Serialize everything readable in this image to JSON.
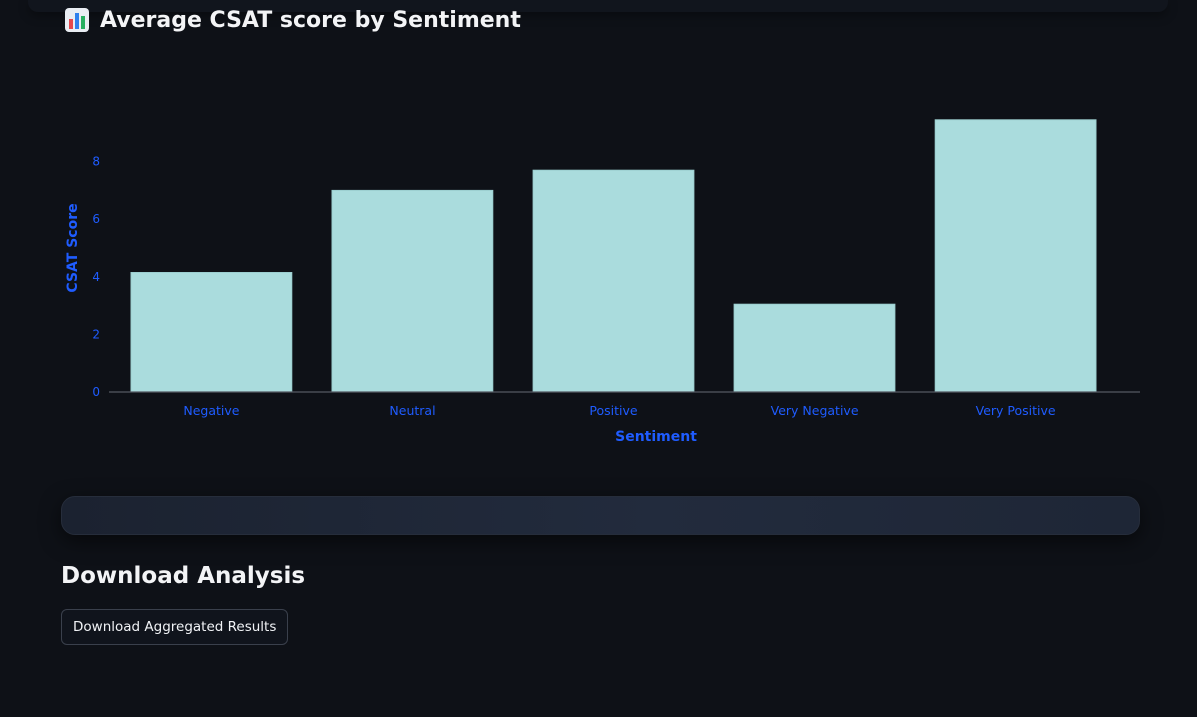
{
  "page": {
    "title": "Average CSAT score by Sentiment",
    "title_icon": "bar-chart-icon"
  },
  "colors": {
    "background": "#0e1117",
    "bar_fill": "#aadcdd",
    "axis_text": "#1f5cff",
    "title_text": "#f3f4f6"
  },
  "chart_data": {
    "type": "bar",
    "categories": [
      "Negative",
      "Neutral",
      "Positive",
      "Very Negative",
      "Very Positive"
    ],
    "values": [
      4.15,
      7.0,
      7.7,
      3.05,
      9.45
    ],
    "xlabel": "Sentiment",
    "ylabel": "CSAT Score",
    "yticks": [
      0,
      2,
      4,
      6,
      8
    ],
    "ylim": [
      0,
      9.5
    ],
    "grid": false,
    "legend": "none"
  },
  "download": {
    "heading": "Download Analysis",
    "button_label": "Download Aggregated Results"
  }
}
